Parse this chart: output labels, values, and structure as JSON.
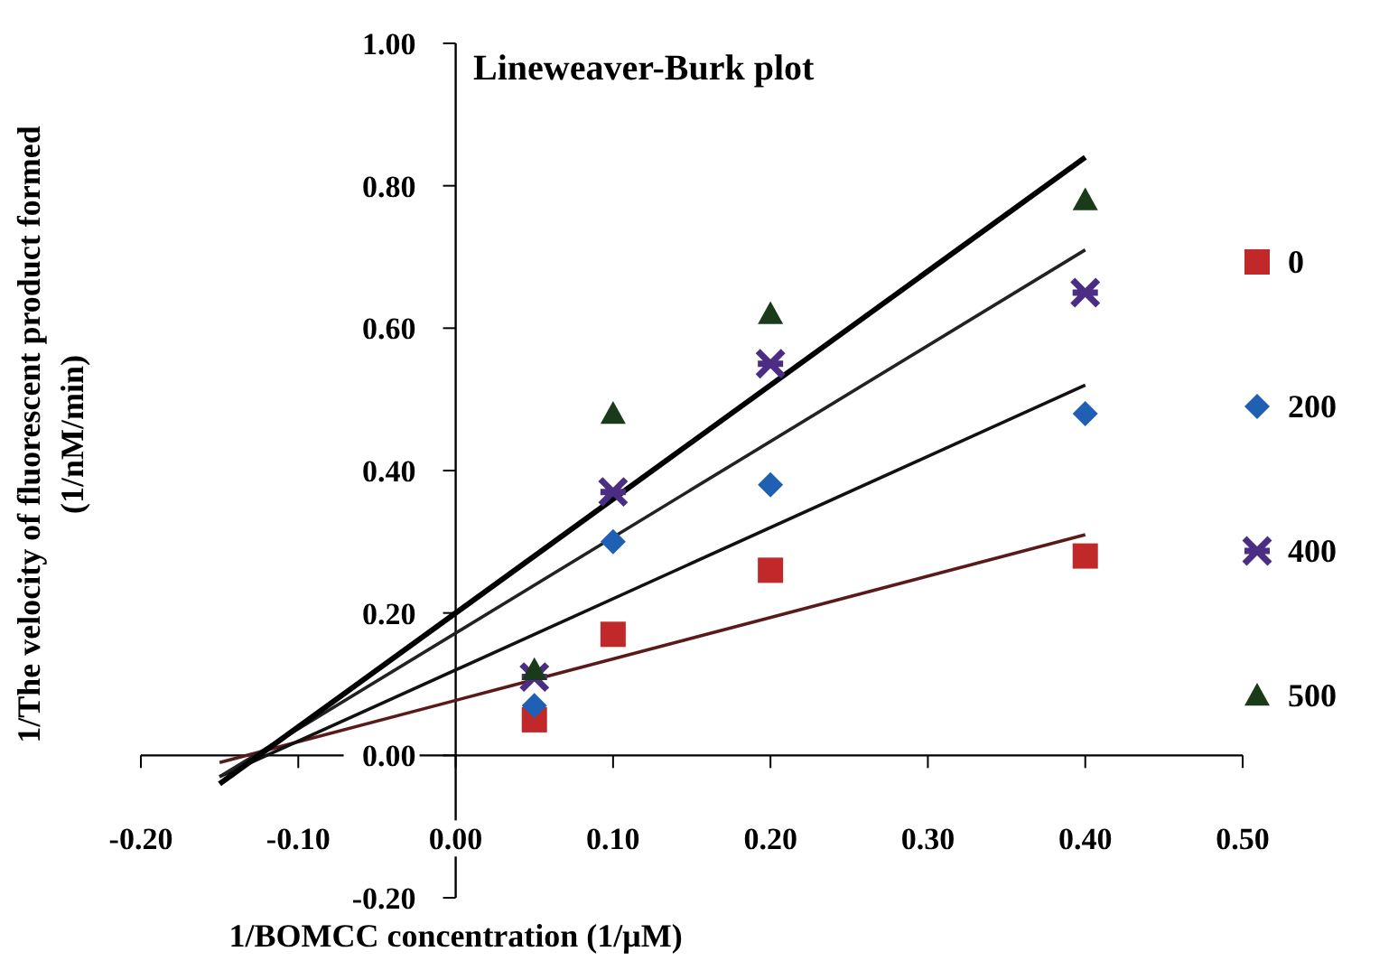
{
  "chart_data": {
    "type": "scatter",
    "title": "Lineweaver-Burk plot",
    "xlabel": "1/BOMCC concentration (1/μM)",
    "ylabel": "1/The velocity of fluorescent product formed\n(1/nM/min)",
    "xlim": [
      -0.2,
      0.5
    ],
    "ylim": [
      -0.2,
      1.0
    ],
    "xticks": [
      {
        "value": -0.2,
        "label": "-0.20"
      },
      {
        "value": -0.1,
        "label": "-0.10"
      },
      {
        "value": 0,
        "label": "0.00"
      },
      {
        "value": 0.1,
        "label": "0.10"
      },
      {
        "value": 0.2,
        "label": "0.20"
      },
      {
        "value": 0.3,
        "label": "0.30"
      },
      {
        "value": 0.4,
        "label": "0.40"
      },
      {
        "value": 0.5,
        "label": "0.50"
      }
    ],
    "yticks": [
      {
        "value": -0.2,
        "label": "-0.20"
      },
      {
        "value": 0,
        "label": "0.00"
      },
      {
        "value": 0.2,
        "label": "0.20"
      },
      {
        "value": 0.4,
        "label": "0.40"
      },
      {
        "value": 0.6,
        "label": "0.60"
      },
      {
        "value": 0.8,
        "label": "0.80"
      },
      {
        "value": 1.0,
        "label": "1.00"
      }
    ],
    "grid": false,
    "legend": "right",
    "series": [
      {
        "type": "line",
        "x": [
          -0.15,
          0.4
        ],
        "values": [
          -0.01,
          0.31
        ],
        "color": "#5a1a1a",
        "marker": "none"
      },
      {
        "type": "line",
        "x": [
          -0.15,
          0.4
        ],
        "values": [
          -0.03,
          0.52
        ],
        "color": "#111111",
        "marker": "none"
      },
      {
        "type": "line",
        "x": [
          -0.15,
          0.4
        ],
        "values": [
          -0.03,
          0.71
        ],
        "color": "#222222",
        "marker": "none"
      },
      {
        "type": "line",
        "x": [
          -0.15,
          0.4
        ],
        "values": [
          -0.04,
          0.84
        ],
        "color": "#000000",
        "marker": "none"
      },
      {
        "name": "0",
        "x": [
          0.05,
          0.1,
          0.2,
          0.4
        ],
        "values": [
          0.05,
          0.17,
          0.26,
          0.28
        ],
        "color": "#c0282a",
        "marker": "square"
      },
      {
        "name": "200",
        "x": [
          0.05,
          0.1,
          0.2,
          0.4
        ],
        "values": [
          0.07,
          0.3,
          0.38,
          0.48
        ],
        "color": "#1f5fb4",
        "marker": "diamond"
      },
      {
        "name": "400",
        "x": [
          0.05,
          0.1,
          0.2,
          0.4
        ],
        "values": [
          0.11,
          0.37,
          0.55,
          0.65
        ],
        "color": "#4b2e83",
        "marker": "cross"
      },
      {
        "name": "500",
        "x": [
          0.05,
          0.1,
          0.2,
          0.4
        ],
        "values": [
          0.12,
          0.48,
          0.62,
          0.78
        ],
        "color": "#1a3a1a",
        "marker": "triangle"
      }
    ]
  }
}
